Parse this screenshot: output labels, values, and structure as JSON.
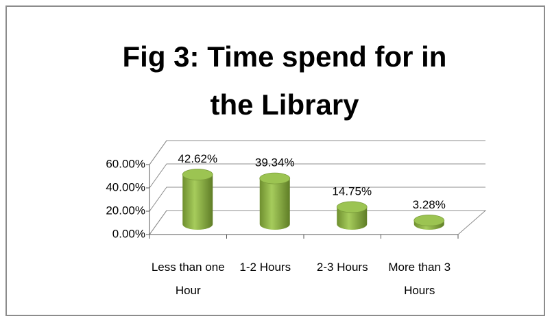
{
  "chart_data": {
    "type": "bar3d",
    "title": "Fig 3: Time spend for in the Library",
    "categories": [
      "Less than one Hour",
      "1-2 Hours",
      "2-3 Hours",
      "More than 3 Hours"
    ],
    "values": [
      42.62,
      39.34,
      14.75,
      3.28
    ],
    "value_labels": [
      "42.62%",
      "39.34%",
      "14.75%",
      "3.28%"
    ],
    "color": "#8db545",
    "ylim": [
      0,
      60
    ],
    "yticks": [
      {
        "value": 0,
        "label": "0.00%"
      },
      {
        "value": 20,
        "label": "20.00%"
      },
      {
        "value": 40,
        "label": "40.00%"
      },
      {
        "value": 60,
        "label": "60.00%"
      }
    ],
    "grid": true
  }
}
